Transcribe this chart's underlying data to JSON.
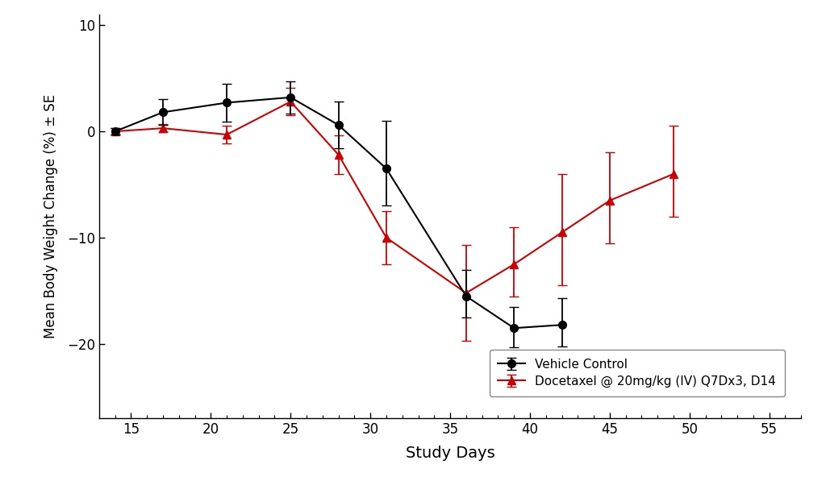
{
  "xlabel": "Study Days",
  "ylabel": "Mean Body Weight Change (%) ± SE",
  "xlim": [
    13,
    57
  ],
  "ylim": [
    -27,
    11
  ],
  "xticks": [
    15,
    20,
    25,
    30,
    35,
    40,
    45,
    50,
    55
  ],
  "yticks": [
    -20,
    -10,
    0,
    10
  ],
  "vehicle_x": [
    14,
    17,
    21,
    25,
    28,
    31,
    36,
    39,
    42
  ],
  "vehicle_y": [
    0.0,
    1.8,
    2.7,
    3.2,
    0.6,
    -3.5,
    -15.5,
    -18.5,
    -18.2
  ],
  "vehicle_ye_lo": [
    0.3,
    1.2,
    1.8,
    1.5,
    2.2,
    3.5,
    2.0,
    1.8,
    2.0
  ],
  "vehicle_ye_hi": [
    0.3,
    1.2,
    1.8,
    1.5,
    2.2,
    4.5,
    2.5,
    2.0,
    2.5
  ],
  "docetaxel_x": [
    14,
    17,
    21,
    25,
    28,
    31,
    36,
    39,
    42,
    45,
    49
  ],
  "docetaxel_y": [
    0.0,
    0.3,
    -0.3,
    2.8,
    -2.2,
    -10.0,
    -15.2,
    -12.5,
    -9.5,
    -6.5,
    -4.0
  ],
  "docetaxel_ye_lo": [
    0.3,
    0.4,
    0.8,
    1.3,
    1.8,
    2.5,
    4.5,
    3.0,
    5.0,
    4.0,
    4.0
  ],
  "docetaxel_ye_hi": [
    0.3,
    0.4,
    0.8,
    1.3,
    1.8,
    2.5,
    4.5,
    3.5,
    5.5,
    4.5,
    4.5
  ],
  "vehicle_color": "#000000",
  "docetaxel_color": "#cc0000",
  "legend_vehicle": "Vehicle Control",
  "legend_docetaxel": "Docetaxel @ 20mg/kg (IV) Q7Dx3, D14",
  "background_color": "#ffffff",
  "linewidth": 1.5,
  "markersize": 7,
  "capsize": 4,
  "elinewidth": 1.3
}
